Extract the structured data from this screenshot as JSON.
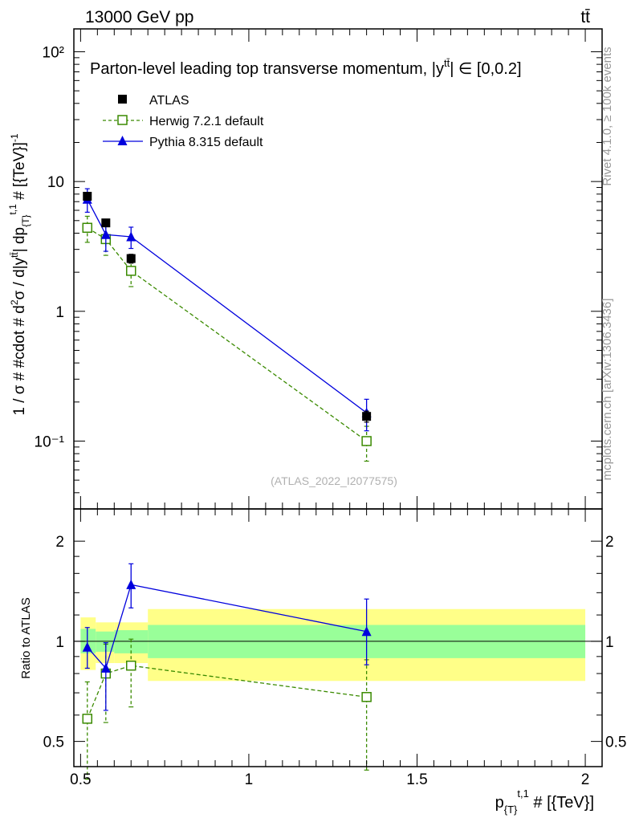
{
  "header": {
    "left": "13000 GeV pp",
    "right": "tt̄"
  },
  "side_labels": {
    "rivet": "Rivet 4.1.0, ≥ 100k events",
    "mcplots": "mcplots.cern.ch [arXiv:1306.3436]"
  },
  "colors": {
    "atlas": "#000000",
    "herwig": "#3a8a00",
    "pythia": "#0000dd",
    "band_inner": "#99ff99",
    "band_outer": "#ffff88"
  },
  "chart_data": [
    {
      "type": "scatter",
      "panel": "main",
      "title": "Parton-level leading top transverse momentum, |y^{tt̄}| ∈ [0,0.2]",
      "ylabel": "1 / σ # #cdot # d²σ / d|y^{tt̄}| dp_{T}^{t,1} # [{TeV}]⁻¹",
      "yscale": "log",
      "ylim": [
        0.03,
        150
      ],
      "xlim": [
        0.48,
        2.05
      ],
      "y_ticks": [
        {
          "value": 0.1,
          "label": "10⁻¹"
        },
        {
          "value": 1,
          "label": "1"
        },
        {
          "value": 10,
          "label": "10"
        },
        {
          "value": 100,
          "label": "10²"
        }
      ],
      "watermark": "(ATLAS_2022_I2077575)",
      "legend_position": "top-left",
      "series": [
        {
          "name": "ATLAS",
          "marker": "filled-square",
          "x": [
            0.52,
            0.575,
            0.65,
            1.35
          ],
          "y": [
            7.7,
            4.8,
            2.55,
            0.155
          ],
          "yerr": [
            0.5,
            0.3,
            0.2,
            0.015
          ]
        },
        {
          "name": "Herwig 7.2.1 default",
          "marker": "open-square",
          "line": "dashed",
          "x": [
            0.52,
            0.575,
            0.65,
            1.35
          ],
          "y": [
            4.4,
            3.6,
            2.05,
            0.1
          ],
          "yerr": [
            1.0,
            0.9,
            0.5,
            0.03
          ]
        },
        {
          "name": "Pythia 8.315 default",
          "marker": "filled-triangle",
          "line": "solid",
          "x": [
            0.52,
            0.575,
            0.65,
            1.35
          ],
          "y": [
            7.3,
            3.9,
            3.75,
            0.165
          ],
          "yerr": [
            1.5,
            1.0,
            0.7,
            0.045
          ]
        }
      ]
    },
    {
      "type": "scatter",
      "panel": "ratio",
      "ylabel": "Ratio to ATLAS",
      "xlabel": "p_{T}^{t,1} # [{TeV}]",
      "yscale": "log",
      "ylim": [
        0.42,
        2.5
      ],
      "xlim": [
        0.48,
        2.05
      ],
      "x_ticks": [
        {
          "value": 0.5,
          "label": "0.5"
        },
        {
          "value": 1,
          "label": "1"
        },
        {
          "value": 1.5,
          "label": "1.5"
        },
        {
          "value": 2,
          "label": "2"
        }
      ],
      "y_ticks": [
        {
          "value": 0.5,
          "label": "0.5"
        },
        {
          "value": 1,
          "label": "1"
        },
        {
          "value": 2,
          "label": "2"
        }
      ],
      "bands": [
        {
          "x0": 0.5,
          "x1": 0.545,
          "inner": [
            0.92,
            1.09
          ],
          "outer": [
            0.82,
            1.18
          ]
        },
        {
          "x0": 0.545,
          "x1": 0.6,
          "inner": [
            0.93,
            1.07
          ],
          "outer": [
            0.86,
            1.14
          ]
        },
        {
          "x0": 0.6,
          "x1": 0.7,
          "inner": [
            0.92,
            1.08
          ],
          "outer": [
            0.86,
            1.14
          ]
        },
        {
          "x0": 0.7,
          "x1": 2.0,
          "inner": [
            0.89,
            1.12
          ],
          "outer": [
            0.76,
            1.25
          ]
        }
      ],
      "series": [
        {
          "name": "Herwig 7.2.1 default",
          "marker": "open-square",
          "line": "dashed",
          "x": [
            0.52,
            0.575,
            0.65,
            1.35
          ],
          "y": [
            0.585,
            0.8,
            0.845,
            0.68
          ],
          "yerr_low": [
            0.2,
            0.23,
            0.21,
            0.27
          ],
          "yerr_high": [
            0.17,
            0.18,
            0.17,
            0.2
          ]
        },
        {
          "name": "Pythia 8.315 default",
          "marker": "filled-triangle",
          "line": "solid",
          "x": [
            0.52,
            0.575,
            0.65,
            1.35
          ],
          "y": [
            0.96,
            0.83,
            1.48,
            1.07
          ],
          "yerr_low": [
            0.13,
            0.21,
            0.22,
            0.22
          ],
          "yerr_high": [
            0.14,
            0.16,
            0.23,
            0.27
          ]
        }
      ]
    }
  ]
}
